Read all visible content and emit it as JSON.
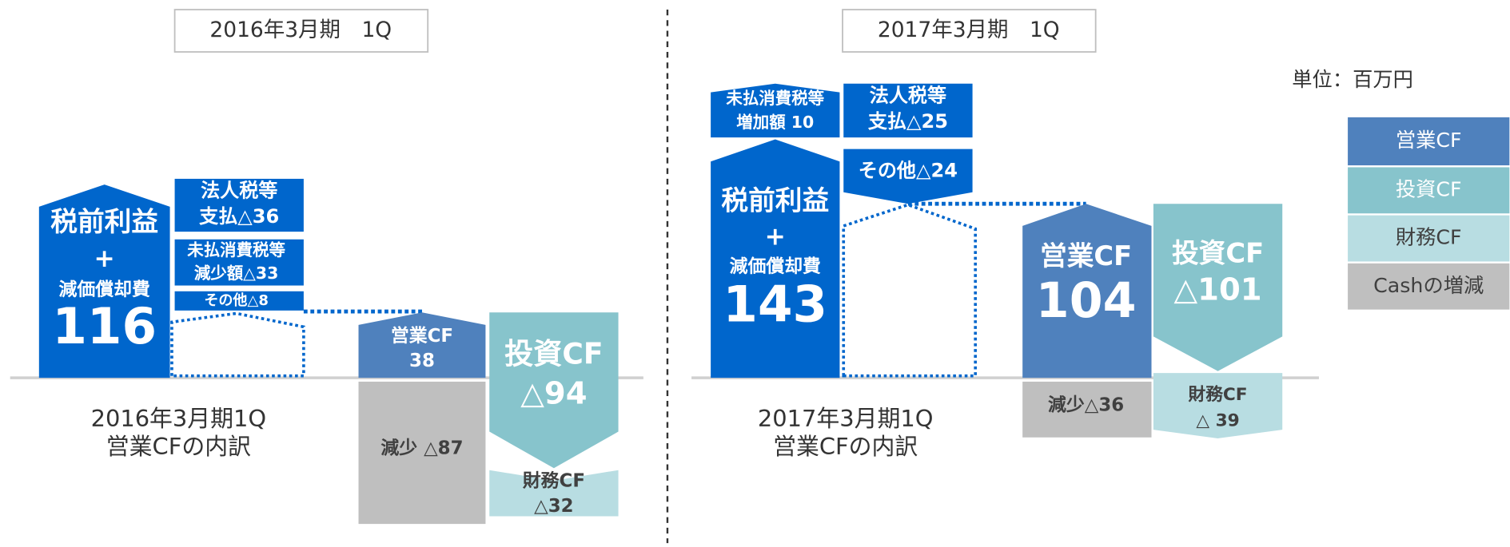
{
  "unit": "単位：百万円",
  "legend": [
    "営業CF",
    "投資CF",
    "財務CF",
    "Cashの増減"
  ],
  "panels": [
    {
      "period": "2016年3月期　1Q",
      "pretax": [
        "税前利益",
        "+",
        "減価償却費",
        "116"
      ],
      "tax": [
        "法人税等",
        "支払△36"
      ],
      "consumption_tax": [
        "未払消費税等",
        "減少額△33"
      ],
      "other": [
        "その他△8"
      ],
      "operating_cf": [
        "営業CF",
        "38"
      ],
      "investing_cf": [
        "投資CF",
        "△94"
      ],
      "cash_change": [
        "減少 △87"
      ],
      "financing_cf": [
        "財務CF",
        "△32"
      ],
      "caption": [
        "2016年3月期1Q",
        "営業CFの内訳"
      ]
    },
    {
      "period": "2017年3月期　1Q",
      "consumption_tax": [
        "未払消費税等",
        "増加額 10"
      ],
      "tax": [
        "法人税等",
        "支払△25"
      ],
      "other": [
        "その他△24"
      ],
      "pretax": [
        "税前利益",
        "+",
        "減価償却費",
        "143"
      ],
      "operating_cf": [
        "営業CF",
        "104"
      ],
      "investing_cf": [
        "投資CF",
        "△101"
      ],
      "cash_change": [
        "減少△36"
      ],
      "financing_cf": [
        "財務CF",
        "△ 39"
      ],
      "caption": [
        "2017年3月期1Q",
        "営業CFの内訳"
      ]
    }
  ]
}
